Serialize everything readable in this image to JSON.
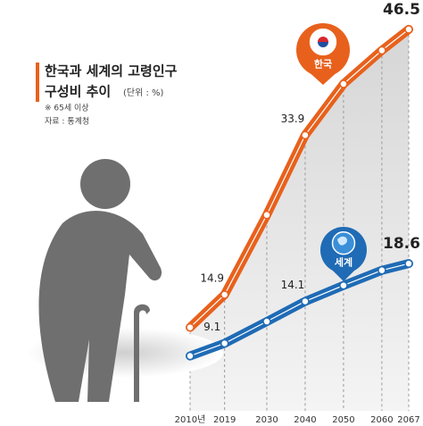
{
  "chart_data": {
    "type": "line",
    "title": [
      "한국과 세계의 고령인구",
      "구성비 추이"
    ],
    "unit": "(단위 : %)",
    "note": "※ 65세 이상",
    "source": "자료 : 통계청",
    "x": [
      {
        "value": 2010,
        "label": "2010년"
      },
      2019,
      2030,
      2040,
      2050,
      2060,
      2067
    ],
    "ylim": [
      0,
      50
    ],
    "series": [
      {
        "name": "한국",
        "color": "#e8611c",
        "values": [
          11,
          14.9,
          24.4,
          33.9,
          40,
          44,
          46.5
        ],
        "value_labels": [
          null,
          "14.9",
          null,
          "33.9",
          null,
          null,
          "46.5"
        ]
      },
      {
        "name": "세계",
        "color": "#1f6bb5",
        "values": [
          7.6,
          9.1,
          11.7,
          14.1,
          16,
          17.8,
          18.6
        ],
        "value_labels": [
          null,
          "9.1",
          null,
          "14.1",
          null,
          null,
          "18.6"
        ]
      }
    ]
  }
}
